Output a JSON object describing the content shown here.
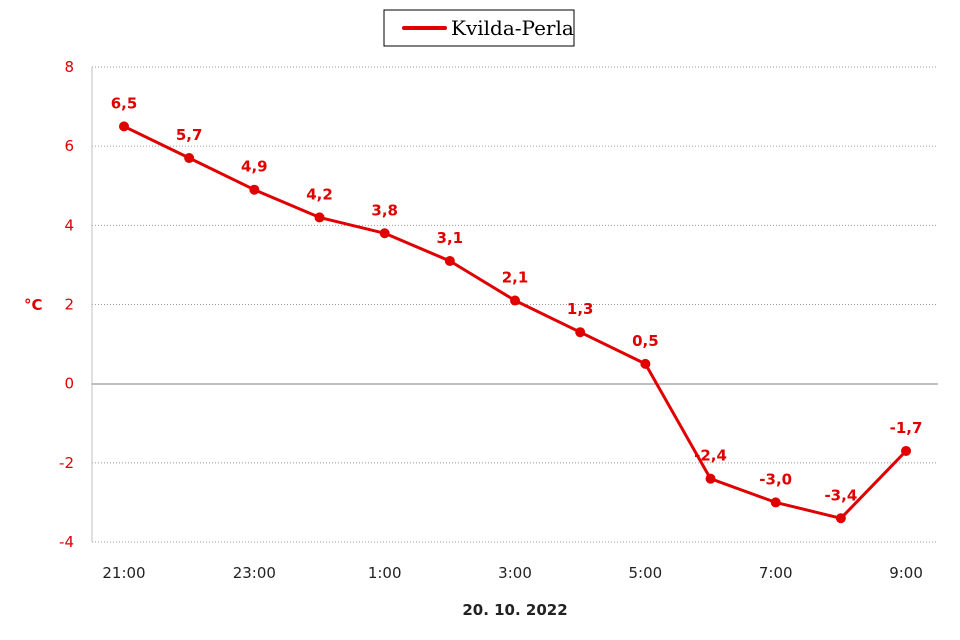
{
  "chart_data": {
    "type": "line",
    "title": "",
    "xlabel": "20. 10. 2022",
    "ylabel": "°C",
    "legend": {
      "placement": "top-center",
      "entries": [
        "Kvilda-Perla"
      ]
    },
    "x": [
      "21:00",
      "22:00",
      "23:00",
      "0:00",
      "1:00",
      "2:00",
      "3:00",
      "4:00",
      "5:00",
      "6:00",
      "7:00",
      "8:00",
      "9:00"
    ],
    "x_tick_labels": [
      "21:00",
      "23:00",
      "1:00",
      "3:00",
      "5:00",
      "7:00",
      "9:00"
    ],
    "series": [
      {
        "name": "Kvilda-Perla",
        "values": [
          6.5,
          5.7,
          4.9,
          4.2,
          3.8,
          3.1,
          2.1,
          1.3,
          0.5,
          -2.4,
          -3.0,
          -3.4,
          -1.7
        ],
        "labels": [
          "6,5",
          "5,7",
          "4,9",
          "4,2",
          "3,8",
          "3,1",
          "2,1",
          "1,3",
          "0,5",
          "-2,4",
          "-3,0",
          "-3,4",
          "-1,7"
        ],
        "color": "#e00000"
      }
    ],
    "ylim": [
      -4,
      8
    ],
    "y_ticks": [
      -4,
      -2,
      0,
      2,
      4,
      6,
      8
    ],
    "grid": "horizontal-dotted"
  }
}
